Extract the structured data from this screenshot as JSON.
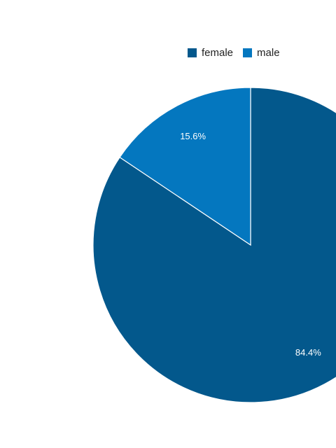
{
  "colors": {
    "background": "#ffffff",
    "slice_border": "#ffffff",
    "label_text": "#ffffff",
    "legend_text": "#222222"
  },
  "legend": {
    "placement": "top-right",
    "items": [
      {
        "label": "female",
        "color": "#03588c"
      },
      {
        "label": "male",
        "color": "#0477bf"
      }
    ]
  },
  "chart_data": {
    "type": "pie",
    "title": "",
    "categories": [
      "female",
      "male"
    ],
    "values": [
      84.4,
      15.6
    ],
    "labels": [
      "84.4%",
      "15.6%"
    ],
    "colors": [
      "#03588c",
      "#0477bf"
    ],
    "start_angle_deg": 0,
    "direction": "clockwise",
    "legend": "top-right"
  }
}
